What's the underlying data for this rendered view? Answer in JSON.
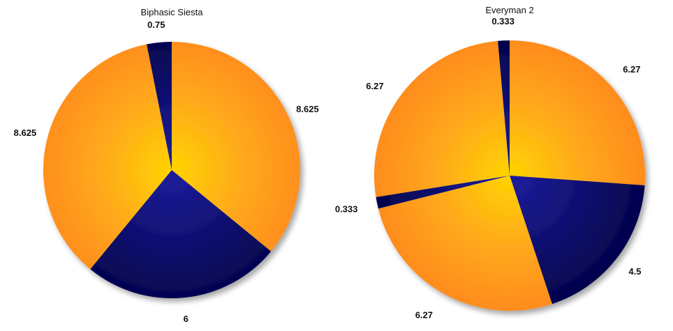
{
  "colors": {
    "orange_center": "#FFD400",
    "orange_mid": "#FFAA1A",
    "orange_edge": "#FF8A1E",
    "navy_center": "#1E1E9E",
    "navy_edge": "#03034A"
  },
  "chart_data": [
    {
      "type": "pie",
      "title": "Biphasic Siesta",
      "slices": [
        {
          "label": "8.625",
          "value": 8.625,
          "color": "orange"
        },
        {
          "label": "6",
          "value": 6,
          "color": "navy"
        },
        {
          "label": "8.625",
          "value": 8.625,
          "color": "orange"
        },
        {
          "label": "0.75",
          "value": 0.75,
          "color": "navy"
        }
      ]
    },
    {
      "type": "pie",
      "title": "Everyman 2",
      "slices": [
        {
          "label": "6.27",
          "value": 6.27,
          "color": "orange"
        },
        {
          "label": "4.5",
          "value": 4.5,
          "color": "navy"
        },
        {
          "label": "6.27",
          "value": 6.27,
          "color": "orange"
        },
        {
          "label": "0.333",
          "value": 0.333,
          "color": "navy"
        },
        {
          "label": "6.27",
          "value": 6.27,
          "color": "orange"
        },
        {
          "label": "0.333",
          "value": 0.333,
          "color": "navy"
        }
      ]
    }
  ]
}
